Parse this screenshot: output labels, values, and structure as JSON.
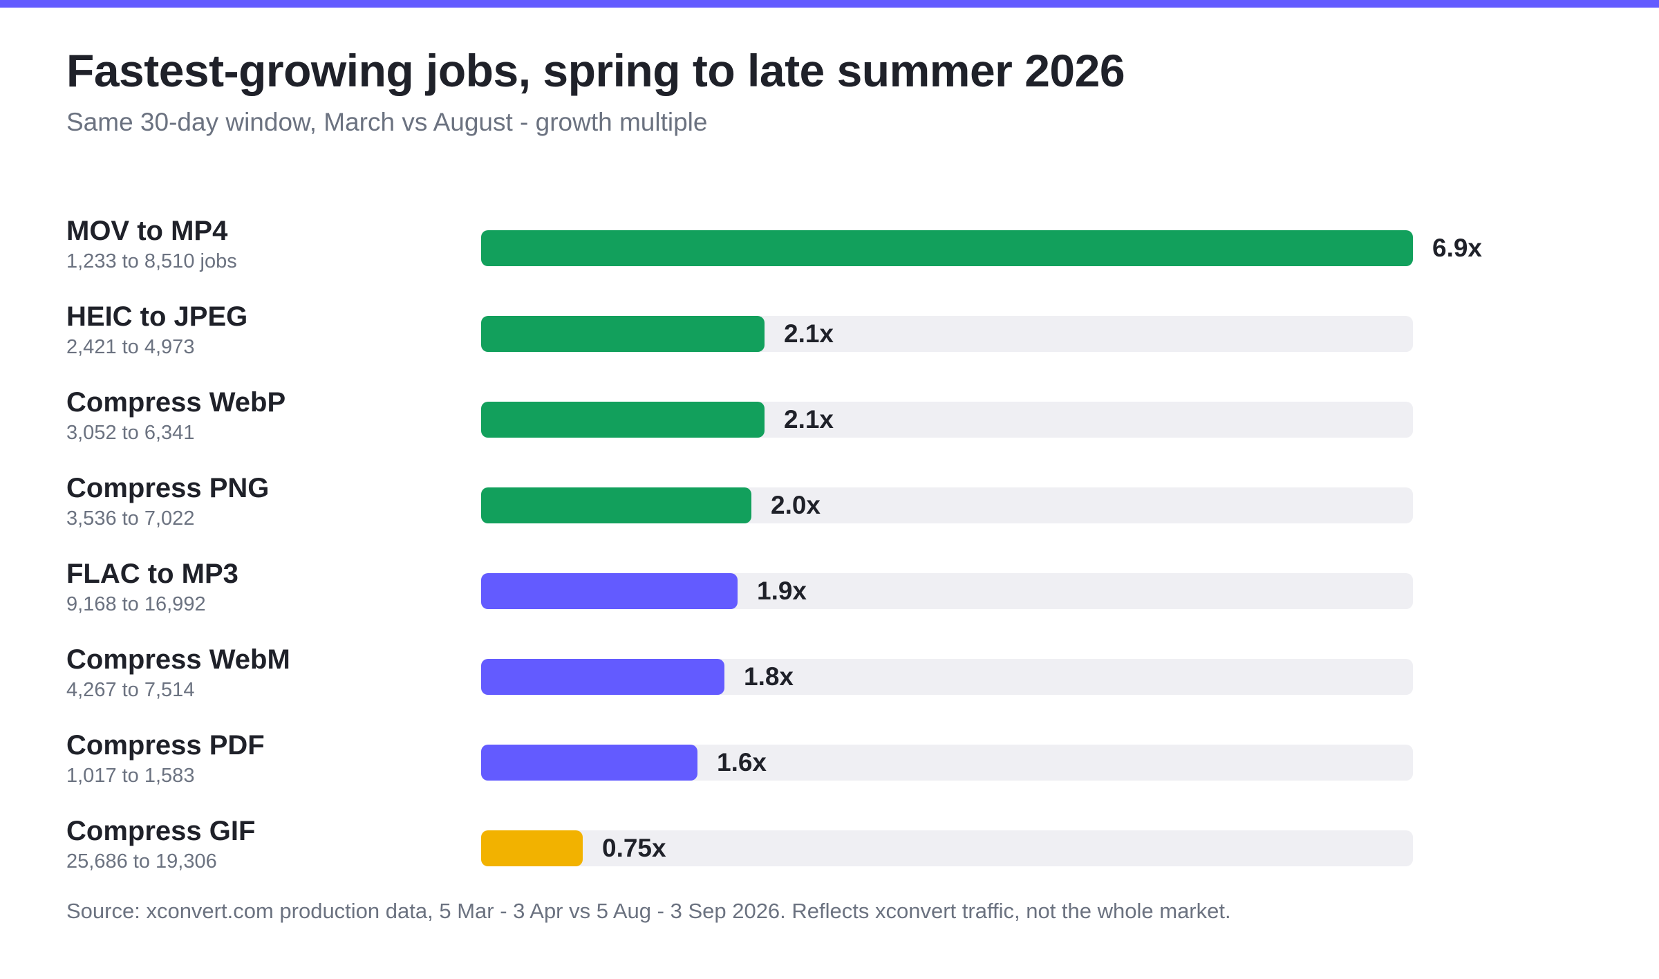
{
  "title": "Fastest-growing jobs, spring to late summer 2026",
  "subtitle": "Same 30-day window, March vs August - growth multiple",
  "source": "Source: xconvert.com production data, 5 Mar - 3 Apr vs 5 Aug - 3 Sep 2026. Reflects xconvert traffic, not the whole market.",
  "colors": {
    "accent": "#635bff",
    "green": "#12a05c",
    "purple": "#635bff",
    "yellow": "#f2b200",
    "track": "#efeff3"
  },
  "chart_data": {
    "type": "bar",
    "orientation": "horizontal",
    "xlim": [
      0,
      6.9
    ],
    "categories": [
      "MOV to MP4",
      "HEIC to JPEG",
      "Compress WebP",
      "Compress PNG",
      "FLAC to MP3",
      "Compress WebM",
      "Compress PDF",
      "Compress GIF"
    ],
    "values": [
      6.9,
      2.1,
      2.1,
      2.0,
      1.9,
      1.8,
      1.6,
      0.75
    ],
    "value_labels": [
      "6.9x",
      "2.1x",
      "2.1x",
      "2.0x",
      "1.9x",
      "1.8x",
      "1.6x",
      "0.75x"
    ],
    "details": [
      "1,233 to 8,510 jobs",
      "2,421 to 4,973",
      "3,052 to 6,341",
      "3,536 to 7,022",
      "9,168 to 16,992",
      "4,267 to 7,514",
      "1,017 to 1,583",
      "25,686 to 19,306"
    ],
    "bar_colors": [
      "#12a05c",
      "#12a05c",
      "#12a05c",
      "#12a05c",
      "#635bff",
      "#635bff",
      "#635bff",
      "#f2b200"
    ]
  }
}
